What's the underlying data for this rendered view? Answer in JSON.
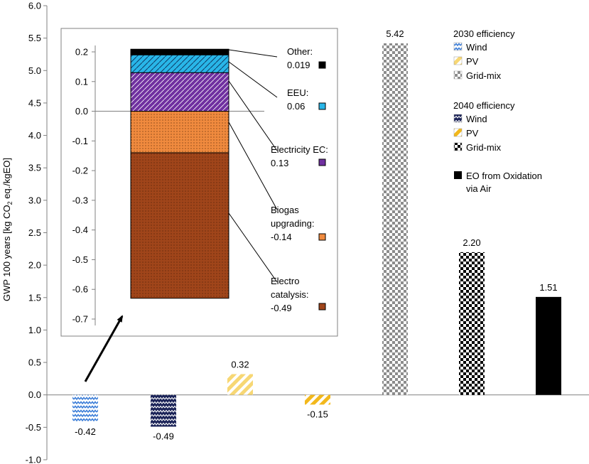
{
  "chart_data": [
    {
      "type": "bar",
      "role": "main",
      "ylabel_parts": [
        "GWP 100 years [kg CO",
        "2",
        " eq./kgEO]"
      ],
      "ylim": [
        -1.0,
        6.0
      ],
      "ytick_step": 0.5,
      "yticks": [
        "6.0",
        "5.5",
        "5.0",
        "4.5",
        "4.0",
        "3.5",
        "3.0",
        "2.5",
        "2.0",
        "1.5",
        "1.0",
        "0.5",
        "0.0",
        "-0.5",
        "-1.0"
      ],
      "bars": [
        {
          "name": "2030 efficiency Wind",
          "value": -0.42,
          "label": "-0.42",
          "pattern": "wave-light"
        },
        {
          "name": "2040 efficiency Wind",
          "value": -0.49,
          "label": "-0.49",
          "pattern": "wave-dark"
        },
        {
          "name": "2030 efficiency PV",
          "value": 0.32,
          "label": "0.32",
          "pattern": "stripe-light"
        },
        {
          "name": "2040 efficiency PV",
          "value": -0.15,
          "label": "-0.15",
          "pattern": "stripe-dark"
        },
        {
          "name": "2030 efficiency Grid-mix",
          "value": 5.42,
          "label": "5.42",
          "pattern": "check-light"
        },
        {
          "name": "2040 efficiency Grid-mix",
          "value": 2.2,
          "label": "2.20",
          "pattern": "check-dark"
        },
        {
          "name": "EO from Oxidation via Air",
          "value": 1.51,
          "label": "1.51",
          "pattern": "solid-black"
        }
      ],
      "legend": {
        "groups": [
          {
            "title": "2030 efficiency",
            "items": [
              {
                "label": "Wind",
                "pattern": "wave-light"
              },
              {
                "label": "PV",
                "pattern": "stripe-light"
              },
              {
                "label": "Grid-mix",
                "pattern": "check-light"
              }
            ]
          },
          {
            "title": "2040 efficiency",
            "items": [
              {
                "label": "Wind",
                "pattern": "wave-dark"
              },
              {
                "label": "PV",
                "pattern": "stripe-dark"
              },
              {
                "label": "Grid-mix",
                "pattern": "check-dark"
              }
            ]
          }
        ],
        "extra": {
          "lines": [
            "EO from Oxidation",
            "via Air"
          ],
          "pattern": "solid-black"
        }
      }
    },
    {
      "type": "stacked-bar",
      "role": "inset",
      "ylim": [
        -0.7,
        0.2
      ],
      "yticks": [
        "0.2",
        "0.1",
        "0.0",
        "-0.1",
        "-0.2",
        "-0.3",
        "-0.4",
        "-0.5",
        "-0.6",
        "-0.7"
      ],
      "segments": [
        {
          "name": "Other",
          "value": 0.019,
          "lines": [
            "Other:",
            "0.019"
          ],
          "pattern": "other",
          "color": "#000000"
        },
        {
          "name": "EEU",
          "value": 0.06,
          "lines": [
            "EEU:",
            "0.06"
          ],
          "pattern": "eeu",
          "color": "#29B6E8"
        },
        {
          "name": "Electricity EC",
          "value": 0.13,
          "lines": [
            "Electricity EC:",
            "0.13"
          ],
          "pattern": "elec",
          "color": "#7030A0"
        },
        {
          "name": "Biogas upgrading",
          "value": -0.14,
          "lines": [
            "Biogas",
            "upgrading:",
            "-0.14"
          ],
          "pattern": "biogas",
          "color": "#F08A3E"
        },
        {
          "name": "Electro catalysis",
          "value": -0.49,
          "lines": [
            "Electro",
            "catalysis:",
            "-0.49"
          ],
          "pattern": "electro",
          "color": "#A0451A"
        }
      ]
    }
  ]
}
